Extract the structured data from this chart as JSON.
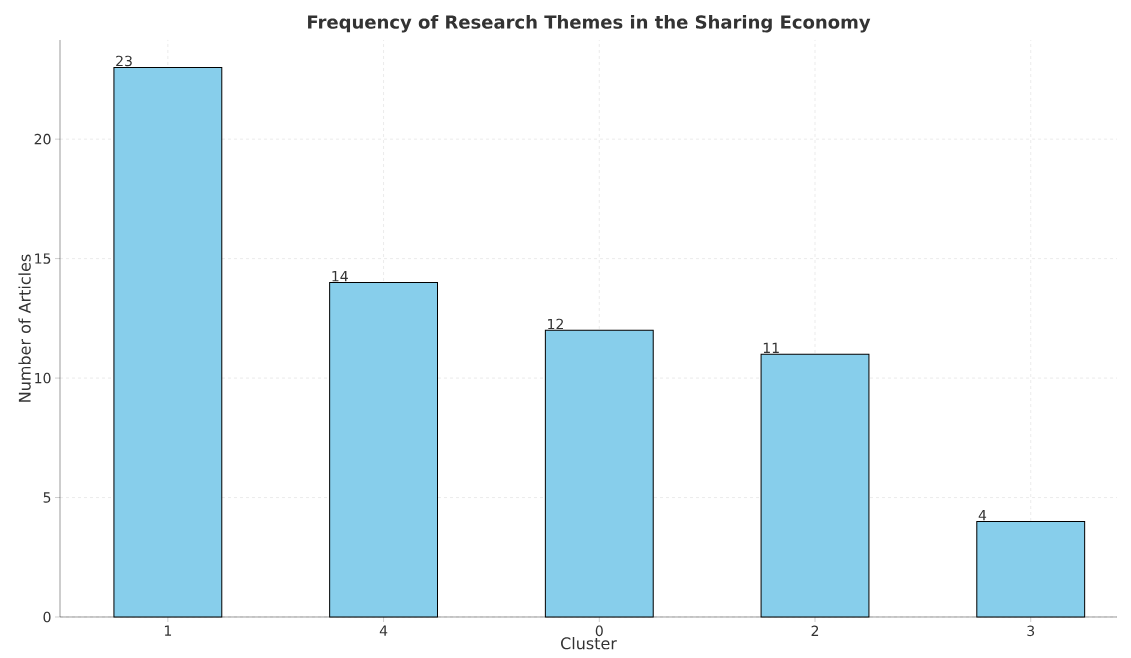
{
  "chart_data": {
    "type": "bar",
    "title": "Frequency of Research Themes in the Sharing Economy",
    "xlabel": "Cluster",
    "ylabel": "Number of Articles",
    "categories": [
      "1",
      "4",
      "0",
      "2",
      "3"
    ],
    "values": [
      23,
      14,
      12,
      11,
      4
    ],
    "color": "#87ceeb",
    "ylim": [
      0,
      24.15
    ],
    "yticks": [
      0,
      5,
      10,
      15,
      20
    ],
    "grid": true,
    "data_labels": true
  }
}
